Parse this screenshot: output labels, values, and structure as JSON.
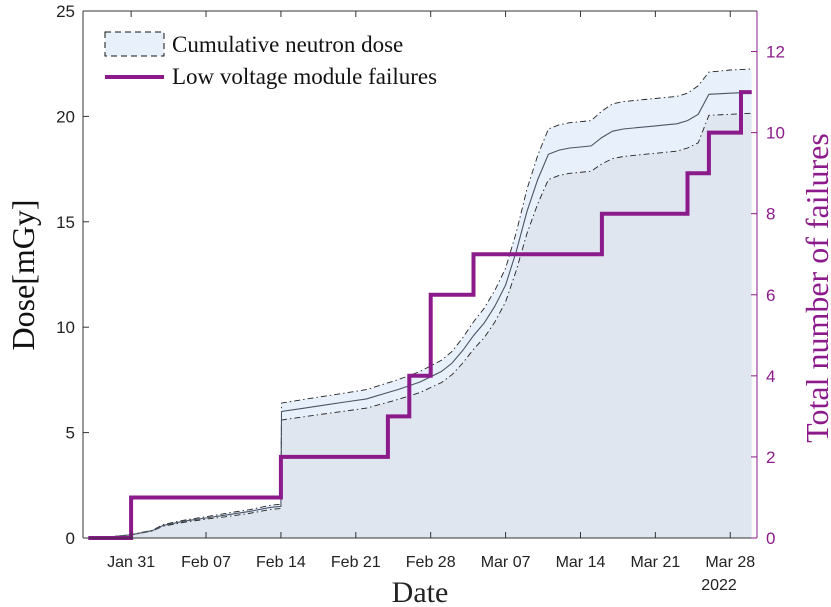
{
  "chart_data": {
    "type": "line",
    "xlabel": "Date",
    "ylabel_left": "Dose[mGy]",
    "ylabel_right": "Total number of failures",
    "year_label": "2022",
    "x_ticks": [
      "Jan 31",
      "Feb 07",
      "Feb 14",
      "Feb 21",
      "Feb 28",
      "Mar 07",
      "Mar 14",
      "Mar 21",
      "Mar 28"
    ],
    "x_tick_days": [
      31,
      38,
      45,
      52,
      59,
      66,
      73,
      80,
      87
    ],
    "x_range": [
      26.5,
      89.5
    ],
    "left_ylim": [
      0,
      25
    ],
    "left_ticks": [
      0,
      5,
      10,
      15,
      20,
      25
    ],
    "right_ylim": [
      0,
      13
    ],
    "right_ticks": [
      0,
      2,
      4,
      6,
      8,
      10,
      12
    ],
    "legend_position": "top-left",
    "colors": {
      "band_fill": "#e8f1fb",
      "area_fill": "#dfe6ef",
      "dose_line": "#4b5566",
      "failures_line": "#8b1a8b",
      "right_axis": "#8b1a8b"
    },
    "series": [
      {
        "name": "Cumulative neutron dose",
        "x": [
          27,
          29,
          31,
          33,
          34,
          36,
          38,
          40,
          42,
          44,
          45,
          45.05,
          47,
          49,
          51,
          53,
          54,
          56,
          58,
          60,
          61,
          62,
          63,
          64,
          65,
          66,
          67,
          68,
          69,
          70,
          71,
          72,
          73,
          74,
          75,
          76,
          77,
          79,
          80,
          81,
          82,
          83,
          84,
          85,
          87,
          89
        ],
        "values": [
          0.0,
          0.05,
          0.15,
          0.35,
          0.6,
          0.8,
          0.95,
          1.1,
          1.25,
          1.45,
          1.5,
          6.0,
          6.15,
          6.3,
          6.45,
          6.6,
          6.75,
          7.05,
          7.4,
          7.9,
          8.3,
          8.9,
          9.6,
          10.2,
          11.0,
          12.0,
          13.6,
          15.5,
          17.0,
          18.2,
          18.4,
          18.5,
          18.55,
          18.6,
          19.0,
          19.3,
          19.4,
          19.5,
          19.55,
          19.6,
          19.65,
          19.8,
          20.1,
          21.05,
          21.1,
          21.15
        ],
        "lower": [
          0.0,
          0.05,
          0.14,
          0.33,
          0.56,
          0.75,
          0.89,
          1.02,
          1.16,
          1.35,
          1.4,
          5.6,
          5.74,
          5.88,
          6.02,
          6.16,
          6.3,
          6.58,
          6.9,
          7.37,
          7.75,
          8.3,
          8.95,
          9.5,
          10.25,
          11.2,
          12.7,
          14.45,
          15.85,
          17.0,
          17.2,
          17.3,
          17.35,
          17.4,
          17.75,
          18.0,
          18.1,
          18.2,
          18.25,
          18.3,
          18.35,
          18.5,
          18.75,
          20.05,
          20.1,
          20.15
        ],
        "upper": [
          0.0,
          0.05,
          0.16,
          0.37,
          0.64,
          0.85,
          1.01,
          1.18,
          1.34,
          1.55,
          1.6,
          6.4,
          6.56,
          6.72,
          6.88,
          7.04,
          7.2,
          7.52,
          7.9,
          8.43,
          8.85,
          9.5,
          10.25,
          10.9,
          11.75,
          12.8,
          14.5,
          16.55,
          18.15,
          19.4,
          19.6,
          19.7,
          19.75,
          19.8,
          20.25,
          20.6,
          20.7,
          20.8,
          20.85,
          20.9,
          20.95,
          21.1,
          21.45,
          22.1,
          22.2,
          22.25
        ]
      },
      {
        "name": "Low voltage module failures",
        "x": [
          27,
          31,
          31,
          45,
          45,
          55,
          55,
          57,
          57,
          59,
          59,
          63,
          63,
          65,
          65,
          75,
          75,
          83,
          83,
          85,
          85,
          88,
          88,
          89
        ],
        "values": [
          0,
          0,
          1,
          1,
          2,
          2,
          3,
          3,
          4,
          4,
          6,
          6,
          7,
          7,
          7,
          7,
          8,
          8,
          9,
          9,
          10,
          10,
          11,
          11
        ]
      }
    ]
  }
}
